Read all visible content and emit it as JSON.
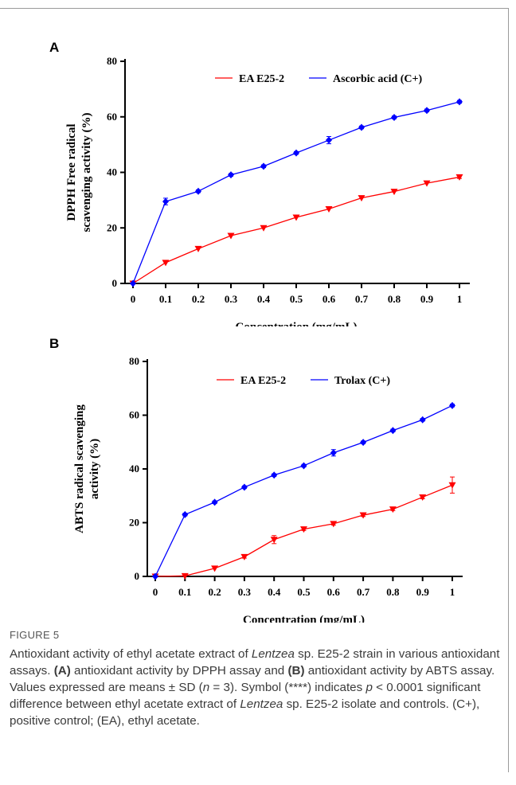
{
  "chart_data": [
    {
      "type": "line",
      "panel_label": "A",
      "title": "",
      "xlabel": "Concentration (mg/mL)",
      "ylabel_lines": [
        "DPPH Free radical",
        "scavenging activity (%)"
      ],
      "categories": [
        "0",
        "0.1",
        "0.2",
        "0.3",
        "0.4",
        "0.5",
        "0.6",
        "0.7",
        "0.8",
        "0.9",
        "1"
      ],
      "ylim": [
        0,
        80
      ],
      "yticks": [
        "0",
        "20",
        "40",
        "60",
        "80"
      ],
      "grid": false,
      "legend_position": "top",
      "series": [
        {
          "name": "EA E25-2",
          "color": "#ff0000",
          "marker": "triangle-down",
          "values": [
            0,
            7.5,
            12.5,
            17.2,
            20,
            23.8,
            26.8,
            30.8,
            33.1,
            36.1,
            38.3
          ],
          "errors": [
            0,
            0.4,
            0.4,
            0.4,
            0.4,
            0.4,
            0.4,
            0.4,
            0.4,
            0.4,
            0.5
          ]
        },
        {
          "name": "Ascorbic acid (C+)",
          "color": "#0000ff",
          "marker": "diamond",
          "values": [
            0,
            29.5,
            33.2,
            39.1,
            42.2,
            47,
            51.6,
            56.2,
            59.8,
            62.3,
            65.4
          ],
          "errors": [
            0,
            1.2,
            0.5,
            0.5,
            0.5,
            0.5,
            1.3,
            0.5,
            0.5,
            0.5,
            0.5
          ]
        }
      ]
    },
    {
      "type": "line",
      "panel_label": "B",
      "title": "",
      "xlabel": "Concentration (mg/mL)",
      "ylabel_lines": [
        "ABTS radical scavenging",
        "activity (%)"
      ],
      "categories": [
        "0",
        "0.1",
        "0.2",
        "0.3",
        "0.4",
        "0.5",
        "0.6",
        "0.7",
        "0.8",
        "0.9",
        "1"
      ],
      "ylim": [
        0,
        80
      ],
      "yticks": [
        "0",
        "20",
        "40",
        "60",
        "80"
      ],
      "grid": false,
      "legend_position": "top",
      "series": [
        {
          "name": "EA E25-2",
          "color": "#ff0000",
          "marker": "triangle-down",
          "values": [
            0,
            0.2,
            3,
            7.3,
            13.7,
            17.6,
            19.6,
            22.8,
            25,
            29.5,
            34
          ],
          "errors": [
            0,
            0.3,
            0.4,
            0.5,
            1.5,
            0.5,
            0.5,
            0.5,
            0.5,
            0.6,
            3
          ]
        },
        {
          "name": "Trolax (C+)",
          "color": "#0000ff",
          "marker": "diamond",
          "values": [
            0,
            23,
            27.6,
            33.2,
            37.7,
            41.2,
            46,
            49.9,
            54.3,
            58.3,
            63.6
          ],
          "errors": [
            0,
            0.5,
            0.5,
            0.5,
            0.5,
            0.5,
            1.2,
            0.5,
            0.5,
            0.5,
            0.5
          ]
        }
      ]
    }
  ],
  "caption": {
    "figure_label": "FIGURE 5",
    "text_parts": [
      {
        "text": "Antioxidant activity of ethyl acetate extract of ",
        "style": "normal"
      },
      {
        "text": "Lentzea",
        "style": "italic"
      },
      {
        "text": " sp. E25-2 strain in various antioxidant assays. ",
        "style": "normal"
      },
      {
        "text": "(A)",
        "style": "bold"
      },
      {
        "text": " antioxidant activity by DPPH assay and ",
        "style": "normal"
      },
      {
        "text": "(B)",
        "style": "bold"
      },
      {
        "text": " antioxidant activity by ABTS assay. Values expressed are means ± SD (",
        "style": "normal"
      },
      {
        "text": "n",
        "style": "italic"
      },
      {
        "text": " = 3). Symbol (****) indicates ",
        "style": "normal"
      },
      {
        "text": "p",
        "style": "italic"
      },
      {
        "text": " < 0.0001 significant difference between ethyl acetate extract of ",
        "style": "normal"
      },
      {
        "text": "Lentzea",
        "style": "italic"
      },
      {
        "text": " sp. E25-2 isolate and controls. (C+), positive control; (EA), ethyl acetate.",
        "style": "normal"
      }
    ]
  }
}
